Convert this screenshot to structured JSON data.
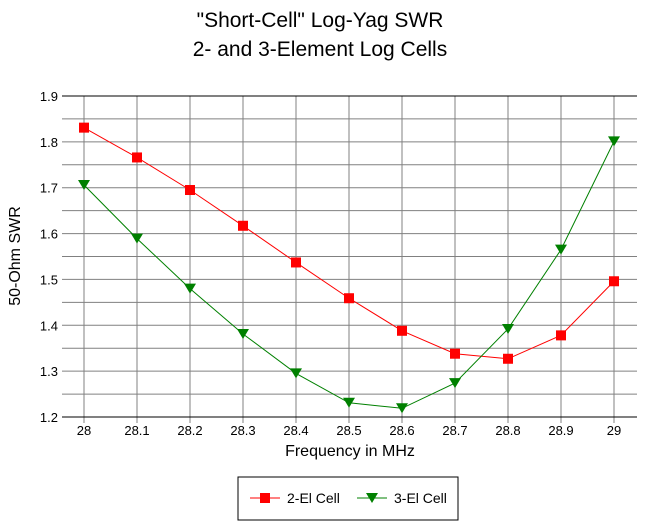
{
  "chart_data": {
    "type": "line",
    "title": "\"Short-Cell\" Log-Yag SWR",
    "subtitle": "2- and 3-Element Log Cells",
    "xlabel": "Frequency in MHz",
    "ylabel": "50-Ohm SWR",
    "x": [
      28,
      28.1,
      28.2,
      28.3,
      28.4,
      28.5,
      28.6,
      28.7,
      28.8,
      28.9,
      29
    ],
    "x_tick_labels": [
      "28",
      "28.1",
      "28.2",
      "28.3",
      "28.4",
      "28.5",
      "28.6",
      "28.7",
      "28.8",
      "28.9",
      "29"
    ],
    "y_tick_labels": [
      "1.2",
      "1.3",
      "1.4",
      "1.5",
      "1.6",
      "1.7",
      "1.8",
      "1.9"
    ],
    "ylim": [
      1.2,
      1.9
    ],
    "grid": true,
    "legend_position": "bottom",
    "series": [
      {
        "name": "2-El Cell",
        "color": "#ff0000",
        "marker": "square",
        "values": [
          1.831,
          1.766,
          1.695,
          1.617,
          1.537,
          1.459,
          1.388,
          1.338,
          1.327,
          1.378,
          1.496
        ]
      },
      {
        "name": "3-El Cell",
        "color": "#008000",
        "marker": "triangle-down",
        "values": [
          1.706,
          1.589,
          1.48,
          1.381,
          1.295,
          1.231,
          1.219,
          1.274,
          1.392,
          1.565,
          1.801
        ]
      }
    ]
  }
}
